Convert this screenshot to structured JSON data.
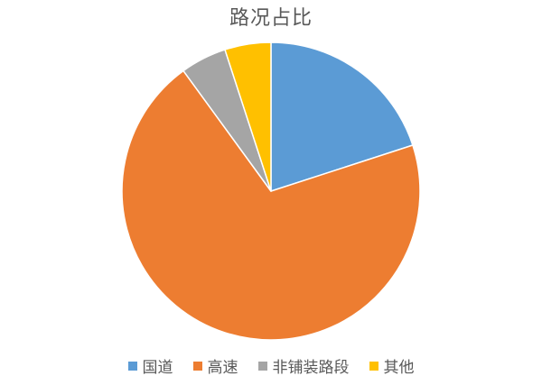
{
  "chart_data": {
    "type": "pie",
    "title": "路况占比",
    "categories": [
      "国道",
      "高速",
      "非铺装路段",
      "其他"
    ],
    "values": [
      20,
      70,
      5,
      5
    ],
    "colors": [
      "#5B9BD5",
      "#ED7D31",
      "#A5A5A5",
      "#FFC000"
    ],
    "start_angle_deg": 0,
    "direction": "clockwise",
    "legend_position": "bottom"
  }
}
